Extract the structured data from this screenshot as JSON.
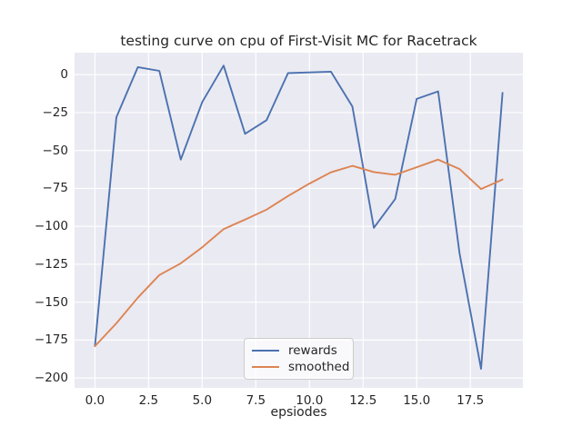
{
  "figure": {
    "title": "testing curve on cpu of First-Visit MC for Racetrack",
    "background": "#ffffff"
  },
  "chart_data": {
    "type": "line",
    "title": "testing curve on cpu of First-Visit MC for Racetrack",
    "xlabel": "epsiodes",
    "ylabel": "",
    "x": [
      0,
      1,
      2,
      3,
      4,
      5,
      6,
      7,
      8,
      9,
      10,
      11,
      12,
      13,
      14,
      15,
      16,
      17,
      18,
      19
    ],
    "series": [
      {
        "name": "rewards",
        "color": "#4C72B0",
        "values": [
          -179,
          -28,
          5,
          2.5,
          -56,
          -18,
          6,
          -39,
          -30,
          1,
          1.5,
          2,
          -21,
          -101,
          -82,
          -16,
          -11,
          -118,
          -194,
          -12
        ]
      },
      {
        "name": "smoothed",
        "color": "#DD8452",
        "values": [
          -179,
          -163.9,
          -147,
          -132.1,
          -124.4,
          -113.8,
          -101.8,
          -95.5,
          -89,
          -80,
          -71.8,
          -64.4,
          -60.1,
          -64.2,
          -66,
          -61,
          -56,
          -62.2,
          -75.4,
          -69.1
        ]
      }
    ],
    "xlim": [
      -0.95,
      19.95
    ],
    "ylim": [
      -206.5,
      14.5
    ],
    "xticks": [
      0.0,
      2.5,
      5.0,
      7.5,
      10.0,
      12.5,
      15.0,
      17.5
    ],
    "yticks": [
      0,
      -25,
      -50,
      -75,
      -100,
      -125,
      -150,
      -175,
      -200
    ],
    "xtick_labels": [
      "0.0",
      "2.5",
      "5.0",
      "7.5",
      "10.0",
      "12.5",
      "15.0",
      "17.5"
    ],
    "ytick_labels": [
      "0",
      "−25",
      "−50",
      "−75",
      "−100",
      "−125",
      "−150",
      "−175",
      "−200"
    ],
    "grid": true,
    "grid_color": "#ffffff",
    "plot_background": "#eaeaf2",
    "legend_position": "lower center",
    "legend_entries": [
      "rewards",
      "smoothed"
    ]
  }
}
